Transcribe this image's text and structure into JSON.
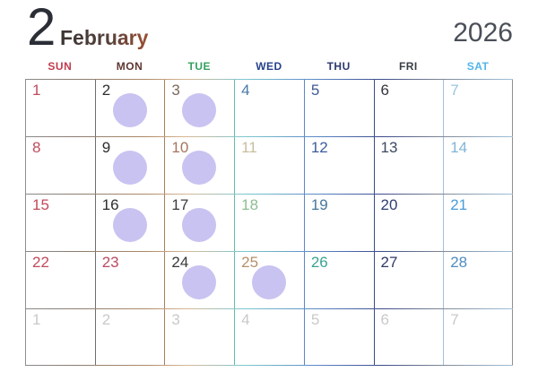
{
  "header": {
    "month_number": "2",
    "month_name": "February",
    "year": "2026"
  },
  "weekdays": [
    {
      "label": "SUN",
      "color": "#c13b4e"
    },
    {
      "label": "MON",
      "color": "#5f3832"
    },
    {
      "label": "TUE",
      "color": "#35a05f"
    },
    {
      "label": "WED",
      "color": "#27418c"
    },
    {
      "label": "THU",
      "color": "#2c3a6e"
    },
    {
      "label": "FRI",
      "color": "#393d45"
    },
    {
      "label": "SAT",
      "color": "#54b4ea"
    }
  ],
  "calendar": {
    "weeks": [
      [
        {
          "day": "1",
          "color": "#c04b5c",
          "circle": false,
          "dim": false
        },
        {
          "day": "2",
          "color": "#2e2e30",
          "circle": true,
          "dim": false
        },
        {
          "day": "3",
          "color": "#7a6a5c",
          "circle": true,
          "dim": false
        },
        {
          "day": "4",
          "color": "#4a7aa8",
          "circle": false,
          "dim": false
        },
        {
          "day": "5",
          "color": "#3c5a94",
          "circle": false,
          "dim": false
        },
        {
          "day": "6",
          "color": "#33363e",
          "circle": false,
          "dim": false
        },
        {
          "day": "7",
          "color": "#96c6e2",
          "circle": false,
          "dim": false
        }
      ],
      [
        {
          "day": "8",
          "color": "#c04b5c",
          "circle": false,
          "dim": false
        },
        {
          "day": "9",
          "color": "#2e2e30",
          "circle": true,
          "dim": false
        },
        {
          "day": "10",
          "color": "#a4765e",
          "circle": true,
          "dim": false
        },
        {
          "day": "11",
          "color": "#c9bd9c",
          "circle": false,
          "dim": false
        },
        {
          "day": "12",
          "color": "#3d5c9e",
          "circle": false,
          "dim": false
        },
        {
          "day": "13",
          "color": "#3c4a60",
          "circle": false,
          "dim": false
        },
        {
          "day": "14",
          "color": "#82b4d8",
          "circle": false,
          "dim": false
        }
      ],
      [
        {
          "day": "15",
          "color": "#c04b5c",
          "circle": false,
          "dim": false
        },
        {
          "day": "16",
          "color": "#2e2e30",
          "circle": true,
          "dim": false
        },
        {
          "day": "17",
          "color": "#3b3b3d",
          "circle": true,
          "dim": false
        },
        {
          "day": "18",
          "color": "#8cbe92",
          "circle": false,
          "dim": false
        },
        {
          "day": "19",
          "color": "#46789e",
          "circle": false,
          "dim": false
        },
        {
          "day": "20",
          "color": "#2e3f72",
          "circle": false,
          "dim": false
        },
        {
          "day": "21",
          "color": "#4b9cd8",
          "circle": false,
          "dim": false
        }
      ],
      [
        {
          "day": "22",
          "color": "#c04b5c",
          "circle": false,
          "dim": false
        },
        {
          "day": "23",
          "color": "#b94b62",
          "circle": false,
          "dim": false
        },
        {
          "day": "24",
          "color": "#3a3a3c",
          "circle": true,
          "dim": false
        },
        {
          "day": "25",
          "color": "#b5906a",
          "circle": true,
          "dim": false
        },
        {
          "day": "26",
          "color": "#3aa393",
          "circle": false,
          "dim": false
        },
        {
          "day": "27",
          "color": "#2e3a68",
          "circle": false,
          "dim": false
        },
        {
          "day": "28",
          "color": "#4f8cc0",
          "circle": false,
          "dim": false
        }
      ],
      [
        {
          "day": "1",
          "color": "#c9c9c9",
          "circle": false,
          "dim": true
        },
        {
          "day": "2",
          "color": "#c9c9c9",
          "circle": false,
          "dim": true
        },
        {
          "day": "3",
          "color": "#c9c9c9",
          "circle": false,
          "dim": true
        },
        {
          "day": "4",
          "color": "#c9c9c9",
          "circle": false,
          "dim": true
        },
        {
          "day": "5",
          "color": "#c9c9c9",
          "circle": false,
          "dim": true
        },
        {
          "day": "6",
          "color": "#c9c9c9",
          "circle": false,
          "dim": true
        },
        {
          "day": "7",
          "color": "#c9c9c9",
          "circle": false,
          "dim": true
        }
      ]
    ]
  },
  "marker": {
    "name": "lavender-circle-sticker",
    "color": "#c9c3f1"
  },
  "grid_lines": {
    "vertical_colors": [
      "#8f8f8f",
      "#6e6e6e",
      "#a8805f",
      "#62bdb0",
      "#5b87c6",
      "#3b4b8c",
      "#9fc0dc",
      "#8f8f8f"
    ],
    "horizontal_gradient": "linear-gradient(90deg,#8a8a8a 0%,#8a7d72 10%,#b08a66 25%,#d9b894 33%,#7cc8cf 45%,#5b87c6 60%,#3b4b8c 73%,#7e8693 85%,#9fc0dc 100%)"
  }
}
